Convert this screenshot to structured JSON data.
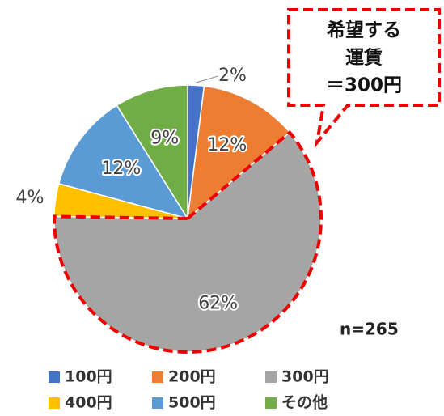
{
  "chart_data": {
    "type": "pie",
    "categories": [
      "100円",
      "200円",
      "300円",
      "400円",
      "500円",
      "その他"
    ],
    "values": [
      2,
      12,
      62,
      4,
      12,
      9
    ],
    "value_labels": [
      "2%",
      "12%",
      "62%",
      "4%",
      "12%",
      "9%"
    ],
    "colors": [
      "#4472c4",
      "#ed7d31",
      "#a5a5a5",
      "#ffc000",
      "#5b9bd5",
      "#70ad47"
    ],
    "annotations": {
      "callout": [
        "希望する",
        "運賃",
        "＝300円"
      ],
      "sample": "n=265"
    }
  }
}
